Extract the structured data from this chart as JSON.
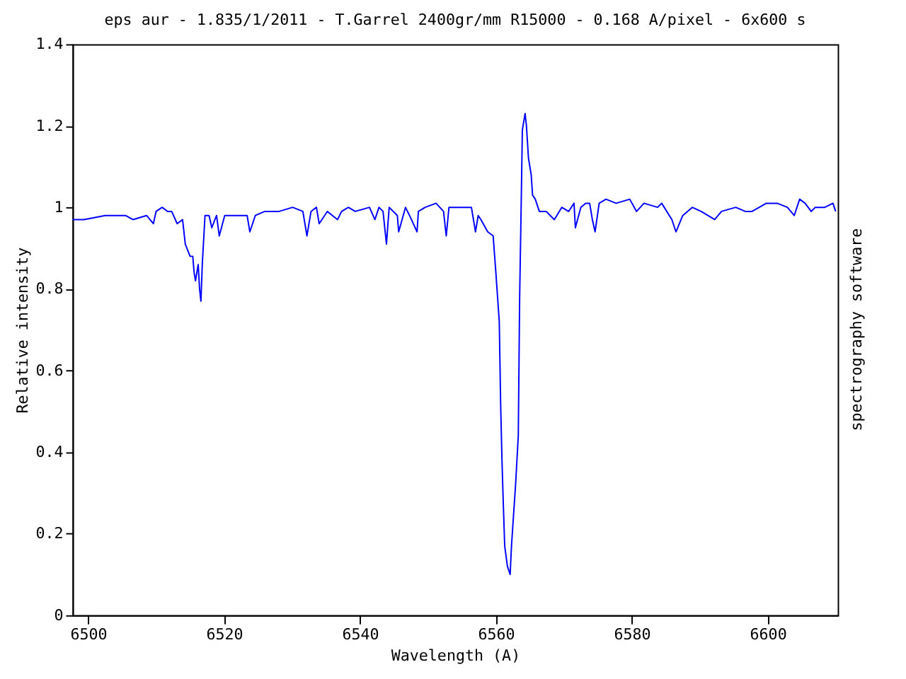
{
  "chart_data": {
    "type": "line",
    "title": "eps aur - 1.835/1/2011 - T.Garrel 2400gr/mm R15000 - 0.168 A/pixel - 6x600 s",
    "xlabel": "Wavelength (A)",
    "ylabel": "Relative intensity",
    "annotations": [
      "spectrography software"
    ],
    "xlim": [
      6497.7,
      6610.3
    ],
    "xticks": [
      6500,
      6520,
      6540,
      6560,
      6580,
      6600
    ],
    "ylim": [
      0,
      1.4
    ],
    "yticks": [
      0,
      0.2,
      0.4,
      0.6,
      0.8,
      1,
      1.2,
      1.4
    ],
    "grid": false,
    "marker": "none",
    "line_style": "solid",
    "series": [
      {
        "color": "#0000ff",
        "x": [
          6497.7,
          6499.4,
          6502.5,
          6505.5,
          6506.6,
          6508.6,
          6509.6,
          6510.0,
          6510.9,
          6511.7,
          6512.3,
          6513.1,
          6513.9,
          6514.3,
          6515.0,
          6515.4,
          6515.6,
          6515.8,
          6516.2,
          6516.4,
          6516.6,
          6516.8,
          6517.2,
          6517.8,
          6518.2,
          6518.9,
          6519.3,
          6520.1,
          6520.9,
          6521.9,
          6523.4,
          6523.8,
          6524.6,
          6526.0,
          6528.1,
          6530.1,
          6531.6,
          6532.2,
          6532.8,
          6533.6,
          6534.0,
          6535.2,
          6536.7,
          6537.3,
          6538.3,
          6539.3,
          6541.4,
          6542.2,
          6542.8,
          6543.4,
          6543.9,
          6544.3,
          6545.5,
          6545.7,
          6546.7,
          6547.3,
          6548.4,
          6548.6,
          6549.6,
          6551.2,
          6552.3,
          6552.7,
          6553.1,
          6554.3,
          6555.7,
          6556.4,
          6557.0,
          6557.4,
          6557.8,
          6558.8,
          6559.6,
          6560.0,
          6560.5,
          6560.7,
          6560.9,
          6561.1,
          6561.3,
          6561.7,
          6562.1,
          6562.3,
          6562.7,
          6562.9,
          6563.3,
          6563.5,
          6563.7,
          6563.9,
          6564.3,
          6564.5,
          6564.8,
          6565.2,
          6565.4,
          6565.8,
          6566.4,
          6567.4,
          6568.0,
          6568.6,
          6569.7,
          6570.7,
          6571.5,
          6571.7,
          6572.5,
          6573.2,
          6573.8,
          6574.2,
          6574.6,
          6575.2,
          6576.2,
          6577.7,
          6579.7,
          6580.7,
          6581.8,
          6583.8,
          6584.4,
          6585.9,
          6586.5,
          6587.5,
          6588.9,
          6590.2,
          6592.2,
          6593.2,
          6595.3,
          6596.7,
          6597.7,
          6599.8,
          6601.4,
          6602.9,
          6603.9,
          6604.7,
          6605.5,
          6606.4,
          6607.0,
          6608.4,
          6609.6,
          6610.0
        ],
        "values": [
          0.97,
          0.97,
          0.98,
          0.98,
          0.97,
          0.98,
          0.96,
          0.99,
          1.0,
          0.99,
          0.99,
          0.96,
          0.97,
          0.91,
          0.88,
          0.88,
          0.84,
          0.82,
          0.86,
          0.8,
          0.77,
          0.86,
          0.98,
          0.98,
          0.95,
          0.98,
          0.93,
          0.98,
          0.98,
          0.98,
          0.98,
          0.94,
          0.98,
          0.99,
          0.99,
          1.0,
          0.99,
          0.93,
          0.99,
          1.0,
          0.96,
          0.99,
          0.97,
          0.99,
          1.0,
          0.99,
          1.0,
          0.97,
          1.0,
          0.99,
          0.91,
          1.0,
          0.98,
          0.94,
          1.0,
          0.98,
          0.94,
          0.99,
          1.0,
          1.01,
          0.99,
          0.93,
          1.0,
          1.0,
          1.0,
          1.0,
          0.94,
          0.98,
          0.97,
          0.94,
          0.93,
          0.84,
          0.72,
          0.52,
          0.38,
          0.27,
          0.17,
          0.12,
          0.1,
          0.17,
          0.27,
          0.32,
          0.44,
          0.78,
          0.98,
          1.19,
          1.23,
          1.2,
          1.12,
          1.08,
          1.03,
          1.02,
          0.99,
          0.99,
          0.98,
          0.97,
          1.0,
          0.99,
          1.01,
          0.95,
          1.0,
          1.01,
          1.01,
          0.97,
          0.94,
          1.01,
          1.02,
          1.01,
          1.02,
          0.99,
          1.01,
          1.0,
          1.01,
          0.97,
          0.94,
          0.98,
          1.0,
          0.99,
          0.97,
          0.99,
          1.0,
          0.99,
          0.99,
          1.01,
          1.01,
          1.0,
          0.98,
          1.02,
          1.01,
          0.99,
          1.0,
          1.0,
          1.01,
          0.99
        ]
      }
    ]
  }
}
